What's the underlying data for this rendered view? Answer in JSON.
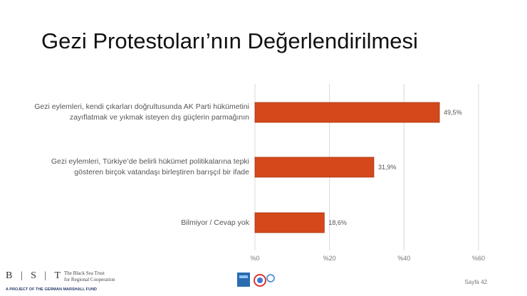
{
  "title": "Gezi Protestoları’nın Değerlendirilmesi",
  "chart_data": {
    "type": "bar",
    "orientation": "horizontal",
    "categories": [
      "Gezi eylemleri, kendi çıkarları doğrultusunda AK Parti hükümetini zayıflatmak ve yıkmak isteyen dış güçlerin parmağının",
      "Gezi eylemleri, Türkiye’de belirli hükümet politikalarına tepki gösteren birçok vatandaşı birleştiren barışçıl bir ifade",
      "Bilmiyor / Cevap yok"
    ],
    "category_lines": [
      [
        "Gezi eylemleri, kendi çıkarları doğrultusunda AK Parti hükümetini",
        "zayıflatmak ve yıkmak isteyen dış güçlerin parmağının"
      ],
      [
        "Gezi eylemleri, Türkiye’de belirli hükümet politikalarına tepki",
        "gösteren birçok vatandaşı birleştiren barışçıl bir ifade"
      ],
      [
        "Bilmiyor / Cevap yok"
      ]
    ],
    "values": [
      49.5,
      31.9,
      18.6
    ],
    "data_labels": [
      "49,5%",
      "31,9%",
      "18,6%"
    ],
    "xlim": [
      0,
      60
    ],
    "xticks": [
      0,
      20,
      40,
      60
    ],
    "xtick_labels": [
      "%0",
      "%20",
      "%40",
      "%60"
    ],
    "grid": true,
    "colors": {
      "bar": "#d4481b",
      "bar_stroke": "#a8340f",
      "grid": "#d9d9d9"
    }
  },
  "footer": {
    "org_logo": "B | S | T",
    "org_name_line1": "The Black Sea Trust",
    "org_name_line2": "for Regional Cooperation",
    "org_tagline": "A PROJECT OF THE GERMAN MARSHALL FUND",
    "page": "Sayfa 42"
  }
}
